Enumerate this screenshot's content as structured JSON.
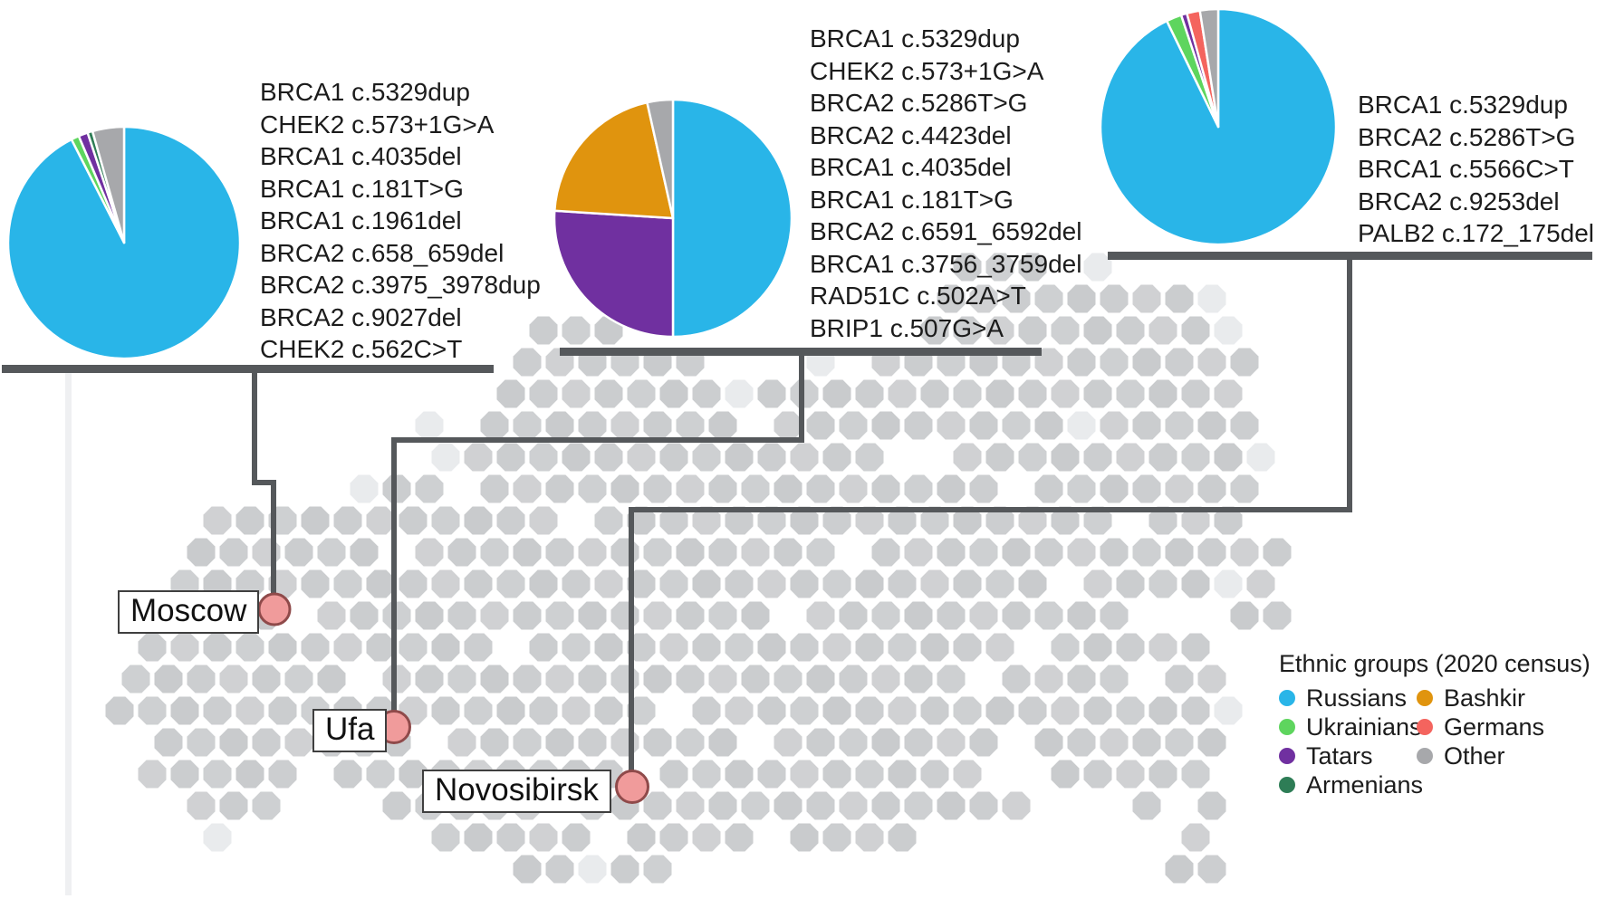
{
  "figure": {
    "description": "Dot map of Russia with city pie charts of ethnic composition and recurrent pathogenic gene variants",
    "background_color": "#ffffff",
    "map_dot_color": "#c9cbcd",
    "map_dot_color_light": "#e9ebed",
    "connector_color": "#55585b",
    "city_marker_fill": "#f09b9b",
    "city_marker_stroke": "#8f4a4a",
    "text_color": "#1c1c1c"
  },
  "cities": [
    {
      "name": "Moscow",
      "variants": [
        "BRCA1 c.5329dup",
        "CHEK2 c.573+1G>A",
        "BRCA1 c.4035del",
        "BRCA1 c.181T>G",
        "BRCA1 c.1961del",
        "BRCA2 c.658_659del",
        "BRCA2 c.3975_3978dup",
        "BRCA2 c.9027del",
        "CHEK2 c.562C>T"
      ]
    },
    {
      "name": "Ufa",
      "variants": [
        "BRCA1 c.5329dup",
        "CHEK2 c.573+1G>A",
        "BRCA2 c.5286T>G",
        "BRCA2 c.4423del",
        "BRCA1 c.4035del",
        "BRCA1 c.181T>G",
        "BRCA2 c.6591_6592del",
        "BRCA1 c.3756_3759del",
        "RAD51C c.502A>T",
        "BRIP1 c.507G>A"
      ]
    },
    {
      "name": "Novosibirsk",
      "variants": [
        "BRCA1 c.5329dup",
        "BRCA2 c.5286T>G",
        "BRCA1 c.5566C>T",
        "BRCA2 c.9253del",
        "PALB2 c.172_175del"
      ]
    }
  ],
  "legend": {
    "title": "Ethnic groups (2020 census)",
    "items": [
      {
        "label": "Russians",
        "color": "#29b5e8"
      },
      {
        "label": "Bashkir",
        "color": "#e0940e"
      },
      {
        "label": "Ukrainians",
        "color": "#5ed55e"
      },
      {
        "label": "Germans",
        "color": "#f4645e"
      },
      {
        "label": "Tatars",
        "color": "#7030a0"
      },
      {
        "label": "Other",
        "color": "#a7a8ab"
      },
      {
        "label": "Armenians",
        "color": "#2e7d56"
      }
    ]
  },
  "chart_data": [
    {
      "type": "pie",
      "title": "Moscow ethnic composition (2020 census)",
      "labels": [
        "Russians",
        "Ukrainians",
        "Tatars",
        "Armenians",
        "Other"
      ],
      "values": [
        92.5,
        1.1,
        1.3,
        0.7,
        4.4
      ],
      "unit": "percent (estimated from pie)",
      "start_angle_deg": -90,
      "direction": "clockwise"
    },
    {
      "type": "pie",
      "title": "Ufa ethnic composition (2020 census)",
      "labels": [
        "Russians",
        "Tatars",
        "Bashkir",
        "Other"
      ],
      "values": [
        50,
        26,
        20.5,
        3.5
      ],
      "unit": "percent (estimated from pie)",
      "start_angle_deg": -90,
      "direction": "clockwise"
    },
    {
      "type": "pie",
      "title": "Novosibirsk ethnic composition (2020 census)",
      "labels": [
        "Russians",
        "Ukrainians",
        "Tatars",
        "Germans",
        "Other"
      ],
      "values": [
        92.8,
        2.1,
        0.8,
        1.8,
        2.5
      ],
      "unit": "percent (estimated from pie)",
      "start_angle_deg": -90,
      "direction": "clockwise"
    }
  ]
}
